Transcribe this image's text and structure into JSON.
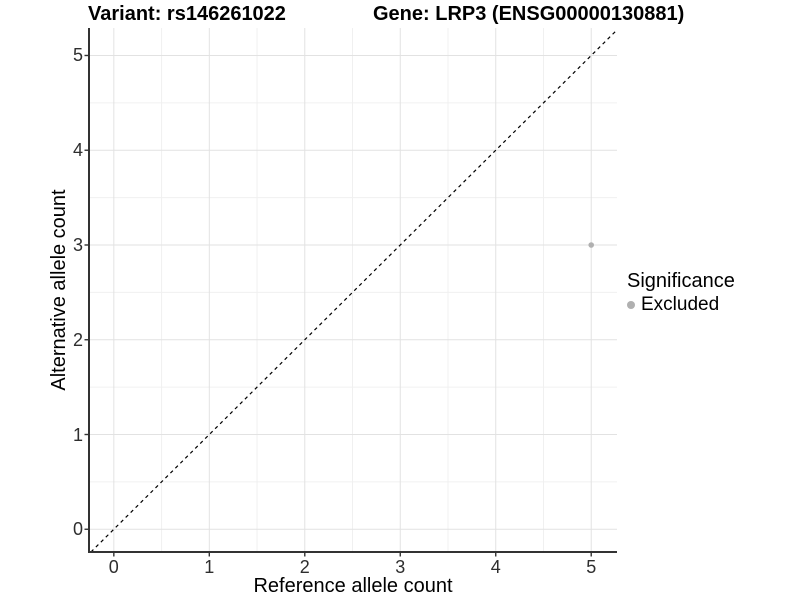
{
  "chart_data": {
    "type": "scatter",
    "title_left": "Variant: rs146261022",
    "title_right": "Gene: LRP3 (ENSG00000130881)",
    "xlabel": "Reference allele count",
    "ylabel": "Alternative allele count",
    "xlim": [
      -0.26,
      5.27
    ],
    "ylim": [
      -0.24,
      5.29
    ],
    "xticks": [
      0,
      1,
      2,
      3,
      4,
      5
    ],
    "yticks": [
      0,
      1,
      2,
      3,
      4,
      5
    ],
    "xminor": [
      0.5,
      1.5,
      2.5,
      3.5,
      4.5
    ],
    "yminor": [
      0.5,
      1.5,
      2.5,
      3.5,
      4.5
    ],
    "grid": true,
    "points": [
      {
        "x": 5,
        "y": 3,
        "significance": "Excluded"
      }
    ],
    "reference_line": {
      "kind": "identity y=x",
      "style": "dashed"
    },
    "legend": {
      "title": "Significance",
      "position": "right",
      "entries": [
        {
          "label": "Excluded",
          "color": "#b0b0b0"
        }
      ]
    }
  },
  "colors": {
    "background": "#ffffff",
    "point": "#b0b0b0",
    "grid_major": "#e2e2e2",
    "grid_minor": "#f0f0f0",
    "axis_line": "#333333",
    "reference_line": "#000000",
    "text": "#000000"
  }
}
